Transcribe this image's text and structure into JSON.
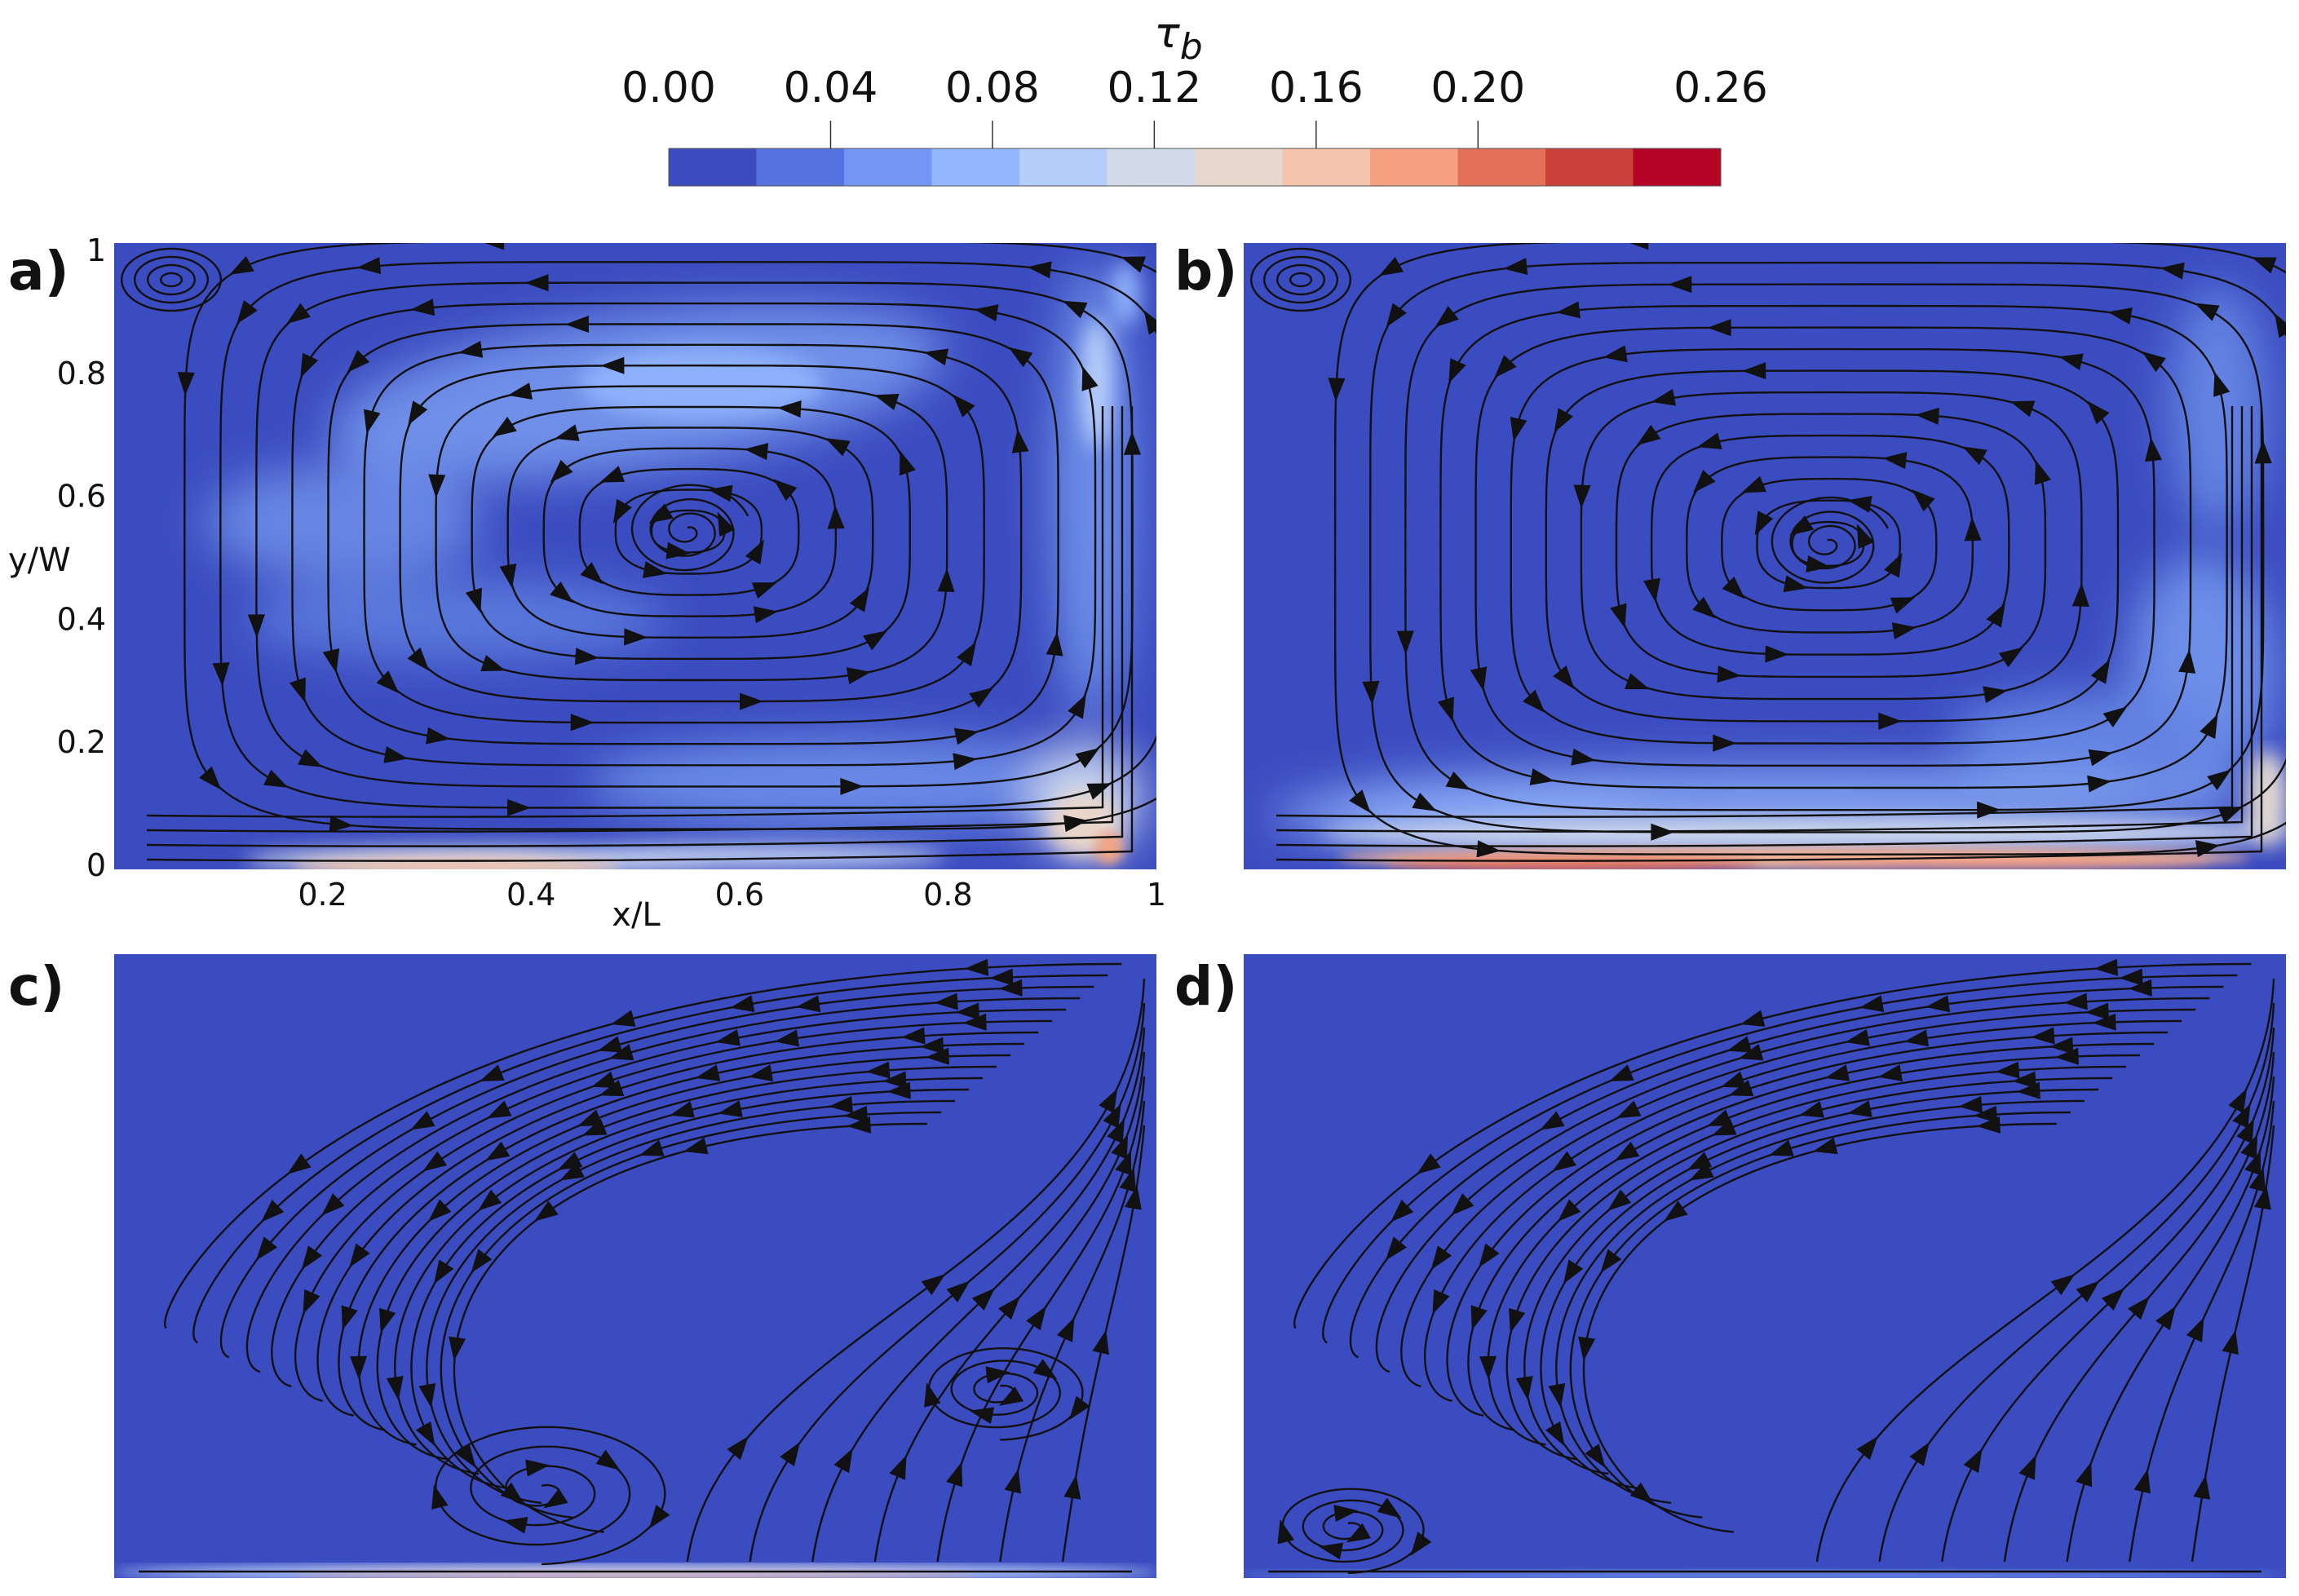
{
  "colorbar": {
    "title": "τ",
    "title_subscript": "b",
    "ticks": [
      "0.00",
      "0.04",
      "0.08",
      "0.12",
      "0.16",
      "0.20",
      "0.26"
    ],
    "min": 0.0,
    "max": 0.26,
    "colors": [
      "#3b4cc0",
      "#5673e0",
      "#7396f5",
      "#94b6ff",
      "#b5cdfa",
      "#d1dae9",
      "#e6d7cf",
      "#f4c3ab",
      "#f5a081",
      "#e57058",
      "#cc403a",
      "#b40426"
    ]
  },
  "panels": [
    {
      "label": "a)",
      "id": "a"
    },
    {
      "label": "b)",
      "id": "b"
    },
    {
      "label": "c)",
      "id": "c"
    },
    {
      "label": "d)",
      "id": "d"
    }
  ],
  "axes": {
    "ylabel": "y/W",
    "xlabel": "x/L",
    "yticks": [
      "1",
      "0.8",
      "0.6",
      "0.4",
      "0.2",
      "0"
    ],
    "xticks": [
      "0.2",
      "0.4",
      "0.6",
      "0.8",
      "1"
    ]
  },
  "background_color": "#3b4cc0",
  "streamline_color": "#111111"
}
